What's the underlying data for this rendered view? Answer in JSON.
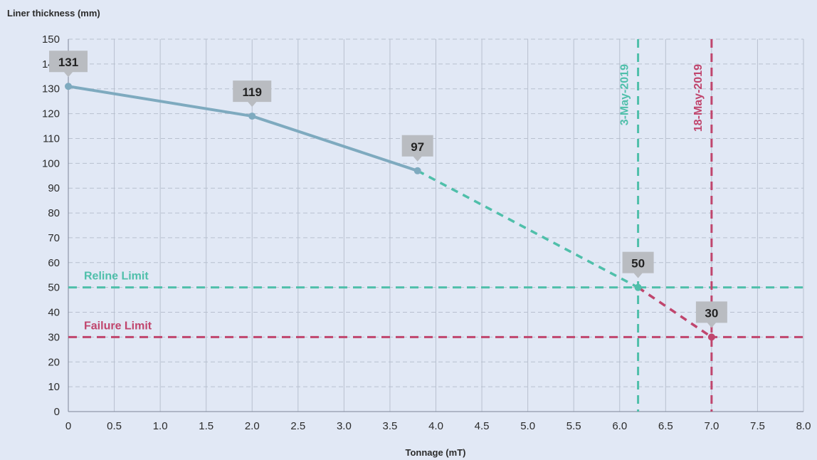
{
  "chart_data": {
    "type": "line",
    "ylabel": "Liner thickness (mm)",
    "xlabel": "Tonnage (mT)",
    "xlim": [
      0,
      8
    ],
    "ylim": [
      0,
      150
    ],
    "x_ticks": [
      "0",
      "0.5",
      "1.0",
      "1.5",
      "2.0",
      "2.5",
      "3.0",
      "3.5",
      "4.0",
      "4.5",
      "5.0",
      "5.5",
      "6.0",
      "6.5",
      "7.0",
      "7.5",
      "8.0"
    ],
    "y_ticks": [
      "0",
      "10",
      "20",
      "30",
      "40",
      "50",
      "60",
      "70",
      "80",
      "90",
      "100",
      "110",
      "120",
      "130",
      "140",
      "150"
    ],
    "grid": true,
    "series": [
      {
        "style": "solid",
        "color": "#7eaabf",
        "points": [
          {
            "x": 0,
            "y": 131,
            "label": "131"
          },
          {
            "x": 2.0,
            "y": 119,
            "label": "119"
          },
          {
            "x": 3.8,
            "y": 97,
            "label": "97"
          }
        ]
      },
      {
        "style": "dashed",
        "color": "#4fbfaa",
        "points": [
          {
            "x": 3.8,
            "y": 97
          },
          {
            "x": 6.2,
            "y": 50,
            "label": "50"
          }
        ]
      },
      {
        "style": "dashed",
        "color": "#c0456d",
        "points": [
          {
            "x": 6.2,
            "y": 50
          },
          {
            "x": 7.0,
            "y": 30,
            "label": "30"
          }
        ]
      }
    ],
    "reference_lines": [
      {
        "orientation": "horizontal",
        "value": 50,
        "label": "Reline Limit",
        "color": "#4fbfaa"
      },
      {
        "orientation": "horizontal",
        "value": 30,
        "label": "Failure Limit",
        "color": "#c0456d"
      },
      {
        "orientation": "vertical",
        "value": 6.2,
        "label": "3-May-2019",
        "color": "#4fbfaa"
      },
      {
        "orientation": "vertical",
        "value": 7.0,
        "label": "18-May-2019",
        "color": "#c0456d"
      }
    ],
    "colors": {
      "background": "#e1e8f5",
      "grid": "#b8c0cf",
      "axis": "#7d8597",
      "label_box": "#b9bcc1"
    }
  }
}
